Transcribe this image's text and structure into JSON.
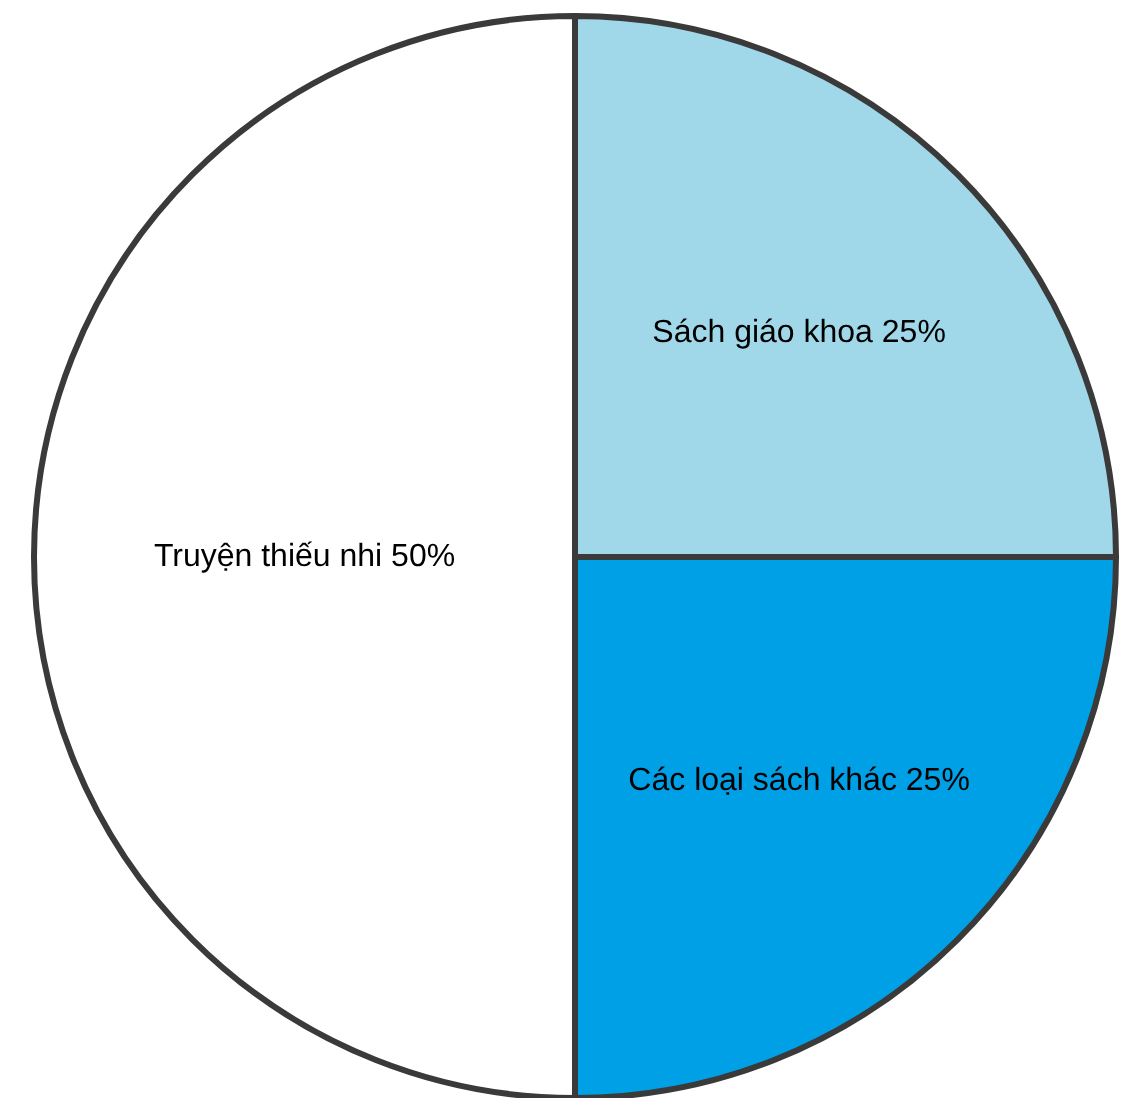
{
  "chart_data": {
    "type": "pie",
    "categories": [
      "Sách giáo khoa",
      "Các loại sách khác",
      "Truyện thiếu nhi"
    ],
    "values": [
      25,
      25,
      50
    ],
    "value_labels": [
      "25%",
      "25%",
      "50%"
    ],
    "colors": [
      "#a0d8ea",
      "#00a0e6",
      "#ffffff"
    ],
    "legend": false
  }
}
